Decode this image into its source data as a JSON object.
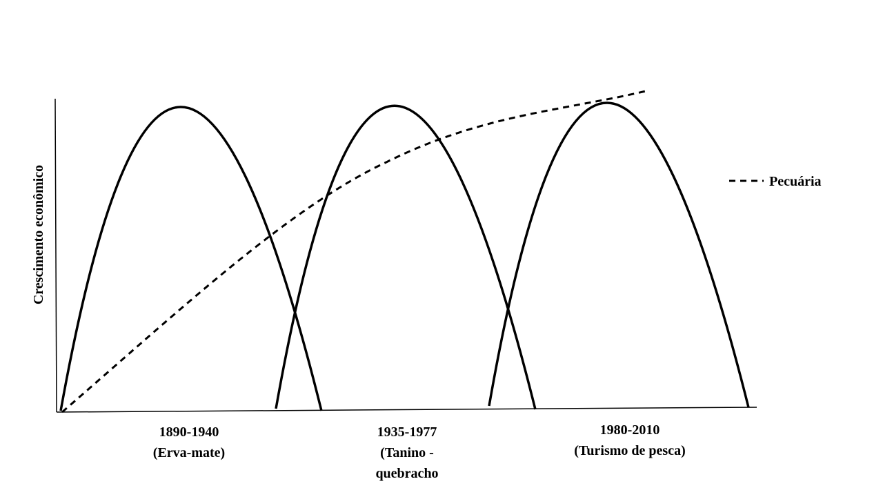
{
  "y_axis_label": "Crescimento econômico",
  "periods": [
    {
      "lines": [
        "1890-1940",
        "(Erva-mate)"
      ]
    },
    {
      "lines": [
        "1935-1977",
        "(Tanino -",
        "quebracho"
      ]
    },
    {
      "lines": [
        "1980-2010",
        "(Turismo de pesca)"
      ]
    }
  ],
  "legend": {
    "label": "Pecuária"
  }
}
